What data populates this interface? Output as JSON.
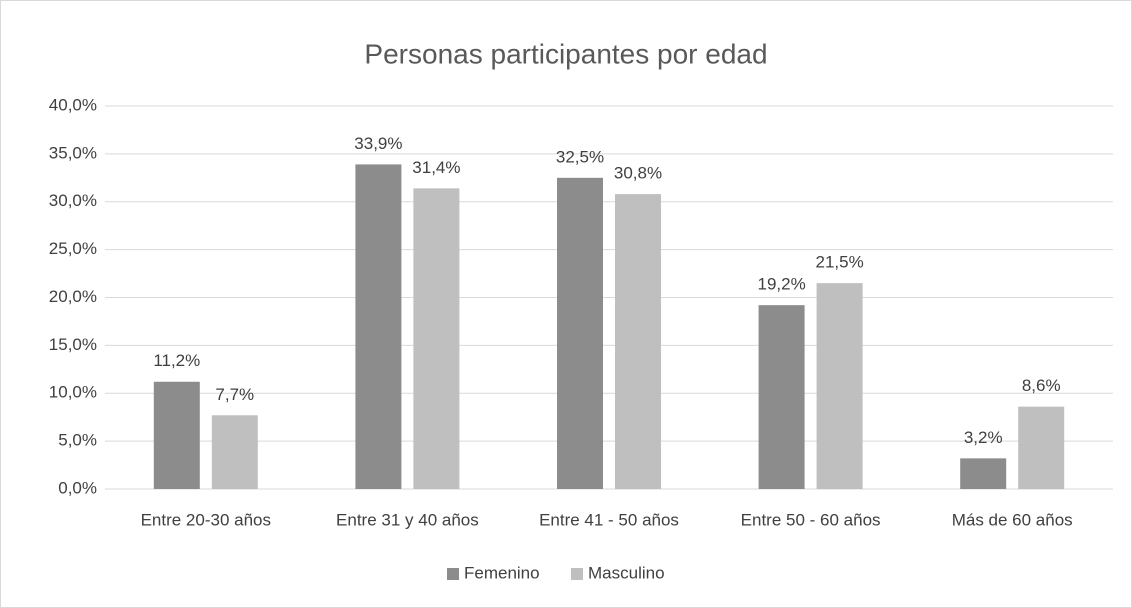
{
  "chart_data": {
    "type": "bar",
    "title": "Personas participantes por edad",
    "categories": [
      "Entre 20-30 años",
      "Entre 31 y 40 años",
      "Entre 41 - 50 años",
      "Entre 50 - 60 años",
      "Más de 60 años"
    ],
    "series": [
      {
        "name": "Femenino",
        "color": "#8c8c8c",
        "values": [
          11.2,
          33.9,
          32.5,
          19.2,
          3.2
        ],
        "value_labels": [
          "11,2%",
          "33,9%",
          "32,5%",
          "19,2%",
          "3,2%"
        ]
      },
      {
        "name": "Masculino",
        "color": "#bfbfbf",
        "values": [
          7.7,
          31.4,
          30.8,
          21.5,
          8.6
        ],
        "value_labels": [
          "7,7%",
          "31,4%",
          "30,8%",
          "21,5%",
          "8,6%"
        ]
      }
    ],
    "ylim": [
      0,
      40
    ],
    "yticks": [
      {
        "value": 0,
        "label": "0,0%"
      },
      {
        "value": 5,
        "label": "5,0%"
      },
      {
        "value": 10,
        "label": "10,0%"
      },
      {
        "value": 15,
        "label": "15,0%"
      },
      {
        "value": 20,
        "label": "20,0%"
      },
      {
        "value": 25,
        "label": "25,0%"
      },
      {
        "value": 30,
        "label": "30,0%"
      },
      {
        "value": 35,
        "label": "35,0%"
      },
      {
        "value": 40,
        "label": "40,0%"
      }
    ],
    "grid": true,
    "legend": "bottom"
  }
}
